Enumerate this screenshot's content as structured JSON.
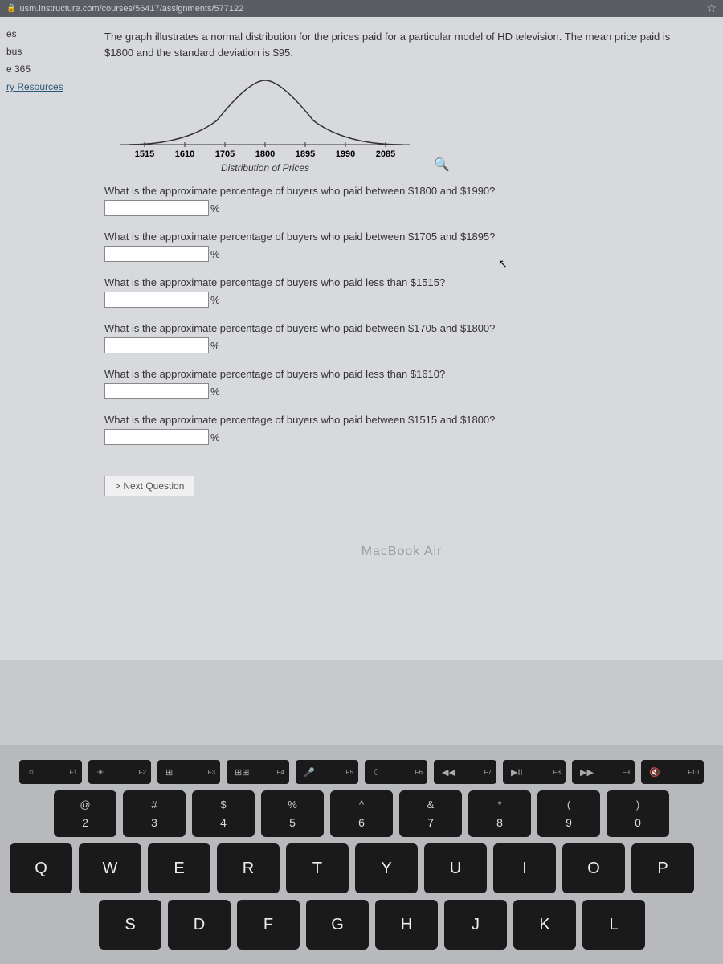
{
  "browser": {
    "url": "usm.instructure.com/courses/56417/assignments/577122"
  },
  "sidebar": {
    "items": [
      "es",
      "bus",
      "e 365",
      "ry Resources"
    ]
  },
  "content": {
    "intro": "The graph illustrates a normal distribution for the prices paid for a particular model of HD television. The mean price paid is $1800 and the standard deviation is $95.",
    "chart": {
      "type": "normal-distribution",
      "x_ticks": [
        "1515",
        "1610",
        "1705",
        "1800",
        "1895",
        "1990",
        "2085"
      ],
      "x_label": "Distribution of Prices",
      "curve_color": "#333333",
      "axis_color": "#333333",
      "background": "#d8d9dc"
    },
    "questions": [
      {
        "text": "What is the approximate percentage of buyers who paid between $1800 and $1990?",
        "unit": "%"
      },
      {
        "text": "What is the approximate percentage of buyers who paid between $1705 and $1895?",
        "unit": "%"
      },
      {
        "text": "What is the approximate percentage of buyers who paid less than $1515?",
        "unit": "%"
      },
      {
        "text": "What is the approximate percentage of buyers who paid between $1705 and $1800?",
        "unit": "%"
      },
      {
        "text": "What is the approximate percentage of buyers who paid less than $1610?",
        "unit": "%"
      },
      {
        "text": "What is the approximate percentage of buyers who paid between $1515 and $1800?",
        "unit": "%"
      }
    ],
    "next_button": "> Next Question",
    "macbook": "MacBook Air"
  },
  "keyboard": {
    "frow": [
      {
        "icon": "☼",
        "label": "F1"
      },
      {
        "icon": "☀",
        "label": "F2"
      },
      {
        "icon": "⊞",
        "label": "F3"
      },
      {
        "icon": "⊞⊞",
        "label": "F4"
      },
      {
        "icon": "🎤",
        "label": "F5"
      },
      {
        "icon": "☾",
        "label": "F6"
      },
      {
        "icon": "◀◀",
        "label": "F7"
      },
      {
        "icon": "▶II",
        "label": "F8"
      },
      {
        "icon": "▶▶",
        "label": "F9"
      },
      {
        "icon": "🔇",
        "label": "F10"
      }
    ],
    "numrow": [
      {
        "sym": "@",
        "num": "2"
      },
      {
        "sym": "#",
        "num": "3"
      },
      {
        "sym": "$",
        "num": "4"
      },
      {
        "sym": "%",
        "num": "5"
      },
      {
        "sym": "^",
        "num": "6"
      },
      {
        "sym": "&",
        "num": "7"
      },
      {
        "sym": "*",
        "num": "8"
      },
      {
        "sym": "(",
        "num": "9"
      },
      {
        "sym": ")",
        "num": "0"
      }
    ],
    "row3": [
      "Q",
      "W",
      "E",
      "R",
      "T",
      "Y",
      "U",
      "I",
      "O",
      "P"
    ],
    "row4": [
      "S",
      "D",
      "F",
      "G",
      "H",
      "J",
      "K",
      "L"
    ]
  }
}
